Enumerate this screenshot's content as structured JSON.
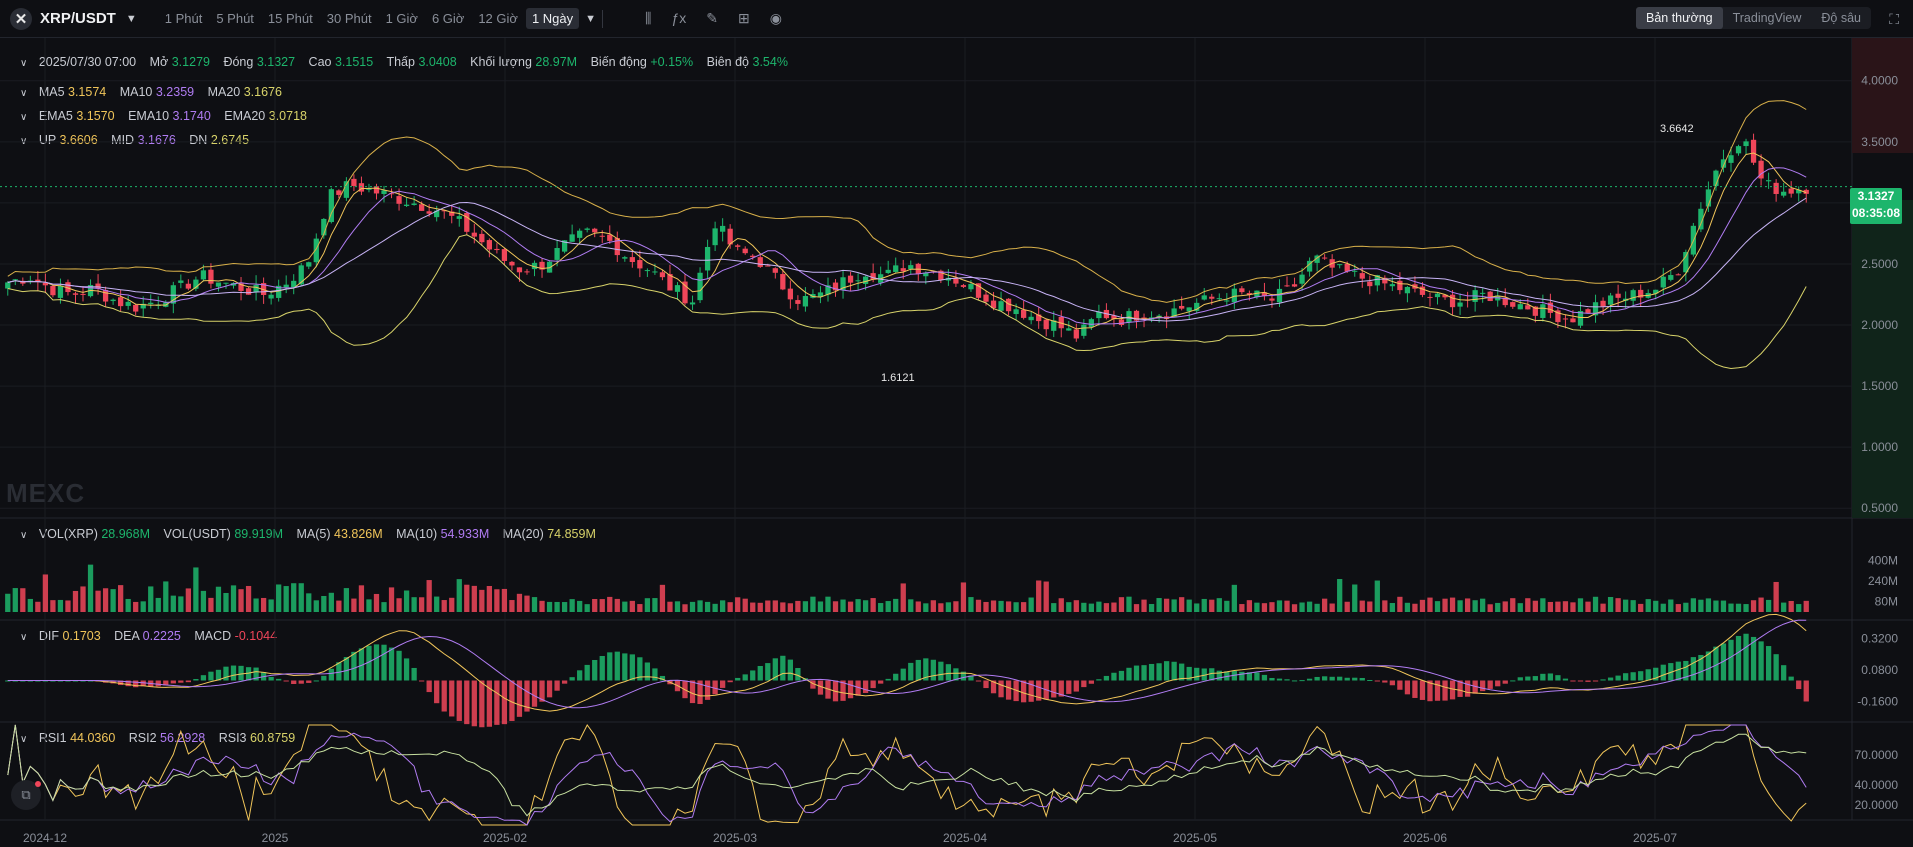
{
  "topbar": {
    "pair": "XRP/USDT",
    "timeframes": [
      "1 Phút",
      "5 Phút",
      "15 Phút",
      "30 Phút",
      "1 Giờ",
      "6 Giờ",
      "12 Giờ",
      "1 Ngày"
    ],
    "active_timeframe": "1 Ngày",
    "modes": [
      "Bản thường",
      "TradingView",
      "Độ sâu"
    ],
    "active_mode": "Bản thường"
  },
  "ohlc": {
    "date": "2025/07/30 07:00",
    "open_label": "Mở",
    "open": "3.1279",
    "close_label": "Đóng",
    "close": "3.1327",
    "high_label": "Cao",
    "high": "3.1515",
    "low_label": "Thấp",
    "low": "3.0408",
    "volume_label": "Khối lượng",
    "volume": "28.97M",
    "change_label": "Biến động",
    "change": "+0.15%",
    "amplitude_label": "Biên độ",
    "amplitude": "3.54%"
  },
  "ma": {
    "ma5_label": "MA5",
    "ma5": "3.1574",
    "ma10_label": "MA10",
    "ma10": "3.2359",
    "ma20_label": "MA20",
    "ma20": "3.1676"
  },
  "ema": {
    "ema5_label": "EMA5",
    "ema5": "3.1570",
    "ema10_label": "EMA10",
    "ema10": "3.1740",
    "ema20_label": "EMA20",
    "ema20": "3.0718"
  },
  "boll": {
    "up_label": "UP",
    "up": "3.6606",
    "mid_label": "MID",
    "mid": "3.1676",
    "dn_label": "DN",
    "dn": "2.6745"
  },
  "vol": {
    "vol_xrp_label": "VOL(XRP)",
    "vol_xrp": "28.968M",
    "vol_usdt_label": "VOL(USDT)",
    "vol_usdt": "89.919M",
    "ma5_label": "MA(5)",
    "ma5": "43.826M",
    "ma10_label": "MA(10)",
    "ma10": "54.933M",
    "ma20_label": "MA(20)",
    "ma20": "74.859M"
  },
  "macd": {
    "dif_label": "DIF",
    "dif": "0.1703",
    "dea_label": "DEA",
    "dea": "0.2225",
    "macd_label": "MACD",
    "macd": "-0.1044"
  },
  "rsi": {
    "rsi1_label": "RSI1",
    "rsi1": "44.0360",
    "rsi2_label": "RSI2",
    "rsi2": "56.2928",
    "rsi3_label": "RSI3",
    "rsi3": "60.8759"
  },
  "price_box": {
    "price": "3.1327",
    "countdown": "08:35:08"
  },
  "watermark": "MEXC",
  "colors": {
    "up": "#1db56c",
    "down": "#f0465a",
    "ma5": "#f0c55a",
    "ma10": "#b07cf2",
    "ma20": "#f0c55a",
    "ema": "#8f7cf2"
  },
  "chart_data": [
    {
      "type": "candlestick",
      "title": "XRP/USDT 1 Ngày",
      "x_ticks": [
        "2024-12",
        "2025",
        "2025-02",
        "2025-03",
        "2025-04",
        "2025-05",
        "2025-06",
        "2025-07"
      ],
      "y_ticks": [
        "4.0000",
        "3.5000",
        "3.0000",
        "2.5000",
        "2.0000",
        "1.5000",
        "1.0000",
        "0.5000"
      ],
      "ylim": [
        0.42,
        4.35
      ],
      "annotations": [
        {
          "label": "3.6642",
          "type": "high"
        },
        {
          "label": "1.6121",
          "type": "low"
        }
      ],
      "series": [
        {
          "name": "close",
          "values": [
            2.35,
            2.4,
            2.3,
            2.25,
            2.3,
            2.2,
            2.15,
            2.2,
            2.3,
            2.4,
            2.35,
            2.3,
            2.25,
            2.35,
            2.5,
            3.05,
            3.15,
            3.1,
            3.05,
            3.0,
            2.95,
            2.85,
            2.7,
            2.55,
            2.45,
            2.5,
            2.65,
            2.75,
            2.7,
            2.55,
            2.45,
            2.3,
            2.2,
            2.85,
            2.6,
            2.55,
            2.35,
            2.2,
            2.25,
            2.35,
            2.45,
            2.4,
            2.5,
            2.45,
            2.4,
            2.3,
            2.2,
            2.15,
            2.05,
            2.0,
            1.9,
            2.1,
            2.05,
            2.1,
            2.1,
            2.15,
            2.2,
            2.25,
            2.25,
            2.2,
            2.3,
            2.55,
            2.45,
            2.4,
            2.35,
            2.3,
            2.25,
            2.2,
            2.2,
            2.25,
            2.2,
            2.15,
            2.1,
            2.05,
            2.15,
            2.2,
            2.25,
            2.3,
            2.45,
            2.95,
            3.35,
            3.55,
            3.15,
            3.1,
            3.13
          ]
        }
      ]
    },
    {
      "type": "bar",
      "title": "Volume",
      "y_ticks": [
        "400M",
        "240M",
        "80M"
      ]
    },
    {
      "type": "bar",
      "title": "MACD",
      "y_ticks": [
        "0.3200",
        "0.0800",
        "-0.1600"
      ]
    },
    {
      "type": "line",
      "title": "RSI",
      "y_ticks": [
        "70.0000",
        "40.0000",
        "20.0000"
      ]
    }
  ]
}
